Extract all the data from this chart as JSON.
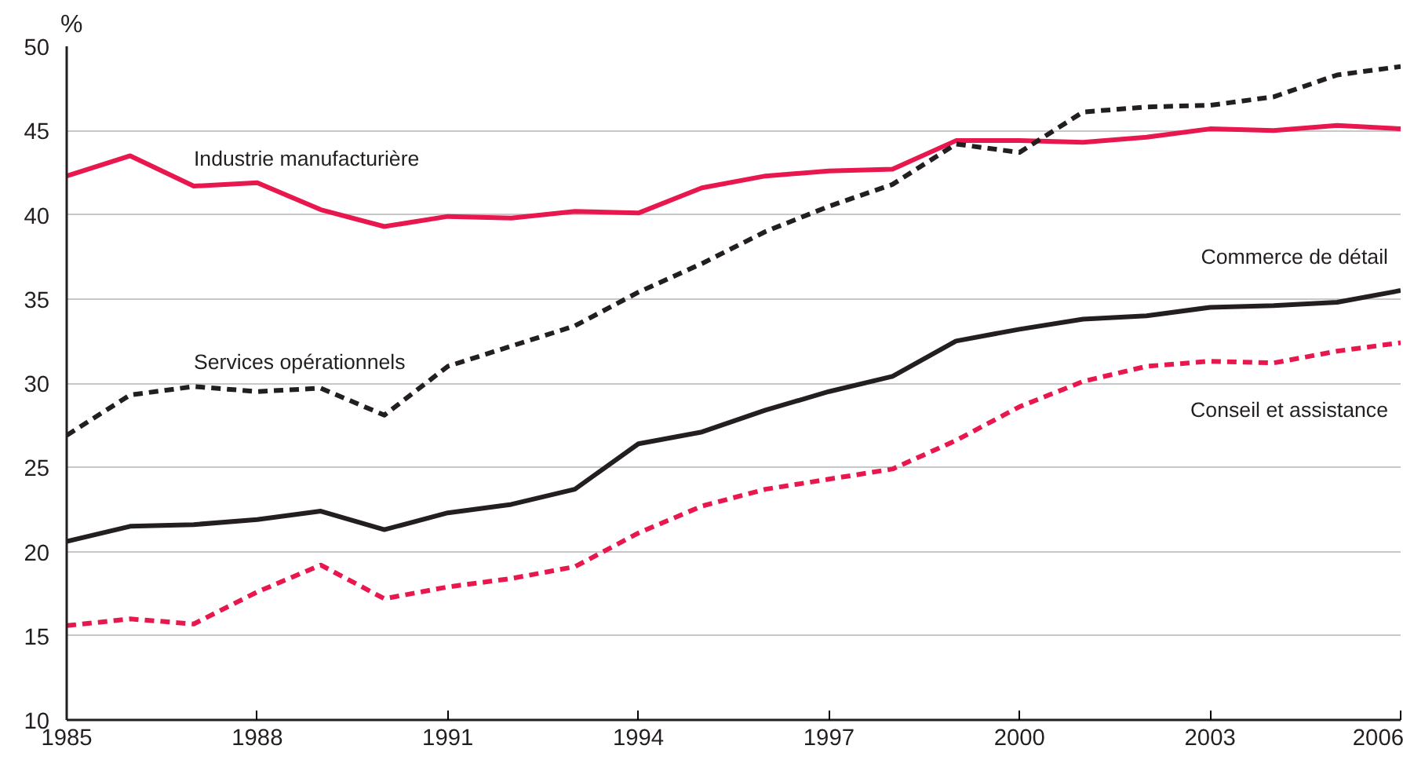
{
  "chart_data": {
    "type": "line",
    "ylabel": "%",
    "x": [
      1985,
      1986,
      1987,
      1988,
      1989,
      1990,
      1991,
      1992,
      1993,
      1994,
      1995,
      1996,
      1997,
      1998,
      1999,
      2000,
      2001,
      2002,
      2003,
      2004,
      2005,
      2006
    ],
    "xlim": [
      1985,
      2006
    ],
    "ylim": [
      10,
      50
    ],
    "xticks": [
      1985,
      1988,
      1991,
      1994,
      1997,
      2000,
      2003,
      2006
    ],
    "yticks": [
      10,
      15,
      20,
      25,
      30,
      35,
      40,
      45,
      50
    ],
    "grid": "y",
    "marker": "none",
    "series": [
      {
        "name": "Industrie manufacturière",
        "color": "#e8174d",
        "line_style": "solid",
        "values": [
          42.3,
          43.5,
          41.7,
          41.9,
          40.3,
          39.3,
          39.9,
          39.8,
          40.2,
          40.1,
          41.6,
          42.3,
          42.6,
          42.7,
          44.4,
          44.4,
          44.3,
          44.6,
          45.1,
          45.0,
          45.3,
          45.1
        ]
      },
      {
        "name": "Services opérationnels",
        "color": "#231f20",
        "line_style": "dashed",
        "values": [
          26.9,
          29.3,
          29.8,
          29.5,
          29.7,
          28.1,
          31.0,
          32.2,
          33.4,
          35.4,
          37.1,
          39.0,
          40.5,
          41.8,
          44.2,
          43.7,
          46.1,
          46.4,
          46.5,
          47.0,
          48.3,
          48.8
        ]
      },
      {
        "name": "Commerce de détail",
        "color": "#231f20",
        "line_style": "solid",
        "values": [
          20.6,
          21.5,
          21.6,
          21.9,
          22.4,
          21.3,
          22.3,
          22.8,
          23.7,
          26.4,
          27.1,
          28.4,
          29.5,
          30.4,
          32.5,
          33.2,
          33.8,
          34.0,
          34.5,
          34.6,
          34.8,
          35.5
        ]
      },
      {
        "name": "Conseil et assistance",
        "color": "#e8174d",
        "line_style": "dashed",
        "values": [
          15.6,
          16.0,
          15.7,
          17.6,
          19.2,
          17.2,
          17.9,
          18.4,
          19.1,
          21.1,
          22.7,
          23.7,
          24.3,
          24.9,
          26.6,
          28.6,
          30.1,
          31.0,
          31.3,
          31.2,
          31.9,
          32.4
        ]
      }
    ]
  }
}
